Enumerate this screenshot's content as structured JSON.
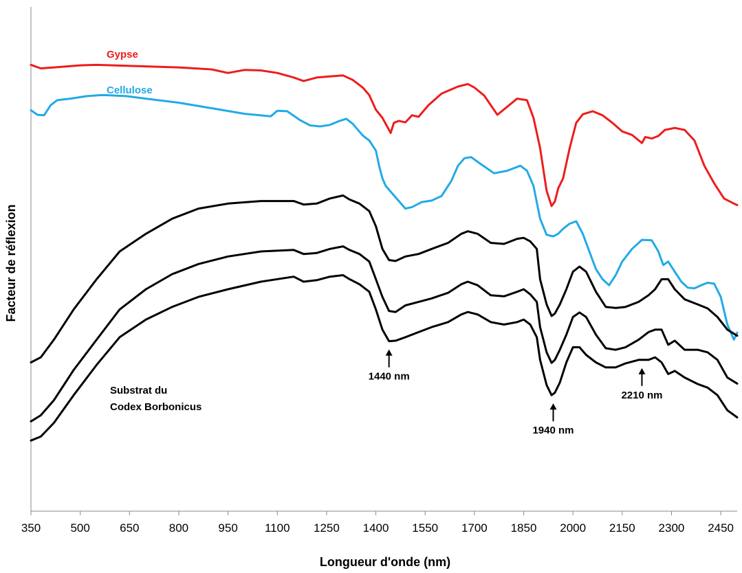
{
  "chart_data": {
    "type": "line",
    "xlabel": "Longueur d'onde (nm)",
    "ylabel": "Facteur de réflexion",
    "xlim": [
      350,
      2500
    ],
    "x_ticks": [
      350,
      500,
      650,
      800,
      950,
      1100,
      1250,
      1400,
      1550,
      1700,
      1850,
      2000,
      2150,
      2300,
      2450
    ],
    "y_ticks_shown": false,
    "grid": false,
    "legend": "none",
    "series": [
      {
        "name": "Gypse",
        "color": "#ee1c1c",
        "x": [
          350,
          380,
          420,
          500,
          550,
          650,
          700,
          800,
          900,
          950,
          1000,
          1050,
          1100,
          1150,
          1180,
          1220,
          1260,
          1300,
          1330,
          1360,
          1380,
          1400,
          1420,
          1435,
          1445,
          1455,
          1470,
          1490,
          1510,
          1530,
          1560,
          1600,
          1650,
          1680,
          1700,
          1730,
          1750,
          1770,
          1800,
          1830,
          1860,
          1880,
          1900,
          1920,
          1935,
          1945,
          1955,
          1970,
          1990,
          2010,
          2030,
          2060,
          2090,
          2120,
          2150,
          2180,
          2210,
          2220,
          2240,
          2260,
          2280,
          2310,
          2340,
          2370,
          2400,
          2430,
          2460,
          2490,
          2500
        ],
        "values": [
          88.5,
          87.8,
          88.0,
          88.4,
          88.5,
          88.3,
          88.2,
          88.0,
          87.6,
          86.9,
          87.5,
          87.4,
          86.9,
          86.0,
          85.3,
          86.0,
          86.2,
          86.4,
          85.5,
          84.0,
          82.5,
          79.6,
          78.0,
          76.2,
          75.0,
          77.0,
          77.4,
          77.1,
          78.5,
          78.2,
          80.5,
          82.8,
          84.2,
          84.7,
          84.0,
          82.4,
          80.5,
          78.6,
          80.2,
          81.8,
          81.5,
          78.0,
          72.0,
          63.5,
          60.5,
          61.4,
          64.0,
          66.0,
          72.0,
          77.0,
          78.7,
          79.3,
          78.5,
          77.0,
          75.3,
          74.6,
          73.0,
          74.2,
          73.9,
          74.4,
          75.6,
          76.0,
          75.6,
          73.5,
          68.5,
          65.0,
          62.0,
          61.0,
          60.7
        ]
      },
      {
        "name": "Cellulose",
        "color": "#22aae6",
        "x": [
          350,
          370,
          390,
          410,
          430,
          470,
          520,
          560,
          580,
          640,
          700,
          800,
          900,
          1000,
          1080,
          1100,
          1130,
          1170,
          1200,
          1230,
          1260,
          1290,
          1310,
          1330,
          1360,
          1380,
          1400,
          1410,
          1420,
          1430,
          1450,
          1470,
          1490,
          1510,
          1540,
          1570,
          1600,
          1630,
          1650,
          1670,
          1690,
          1720,
          1760,
          1800,
          1840,
          1860,
          1880,
          1900,
          1920,
          1940,
          1955,
          1970,
          1990,
          2010,
          2030,
          2050,
          2070,
          2090,
          2110,
          2130,
          2150,
          2180,
          2210,
          2240,
          2260,
          2275,
          2290,
          2310,
          2330,
          2350,
          2370,
          2390,
          2410,
          2430,
          2450,
          2470,
          2490,
          2500
        ],
        "values": [
          79.5,
          78.6,
          78.5,
          80.5,
          81.5,
          81.8,
          82.3,
          82.5,
          82.5,
          82.3,
          81.8,
          81.0,
          79.9,
          78.8,
          78.3,
          79.4,
          79.3,
          77.5,
          76.5,
          76.3,
          76.6,
          77.4,
          77.8,
          76.8,
          74.5,
          73.5,
          71.5,
          68.5,
          66.0,
          64.5,
          63.0,
          61.5,
          60.0,
          60.3,
          61.3,
          61.6,
          62.5,
          65.5,
          68.5,
          70.0,
          70.2,
          68.8,
          67.0,
          67.5,
          68.5,
          67.5,
          64.5,
          58.0,
          54.8,
          54.5,
          55.0,
          56.0,
          57.0,
          57.5,
          55.0,
          51.5,
          48.0,
          46.0,
          44.8,
          46.8,
          49.5,
          52.0,
          53.8,
          53.7,
          51.5,
          48.8,
          49.5,
          47.5,
          45.5,
          44.3,
          44.2,
          44.8,
          45.3,
          45.1,
          42.5,
          37.0,
          34.0,
          35.4
        ]
      },
      {
        "name": "Substrat du Codex Borbonicus (1)",
        "color": "#000000",
        "x": [
          350,
          380,
          420,
          480,
          550,
          620,
          700,
          780,
          860,
          950,
          1050,
          1150,
          1180,
          1220,
          1260,
          1300,
          1320,
          1350,
          1380,
          1400,
          1420,
          1440,
          1460,
          1490,
          1530,
          1570,
          1620,
          1660,
          1680,
          1710,
          1750,
          1790,
          1830,
          1850,
          1870,
          1890,
          1900,
          1920,
          1935,
          1945,
          1960,
          1980,
          2000,
          2020,
          2040,
          2070,
          2100,
          2130,
          2160,
          2200,
          2230,
          2250,
          2270,
          2290,
          2310,
          2340,
          2380,
          2410,
          2440,
          2470,
          2500
        ],
        "values": [
          29.5,
          30.5,
          34.0,
          40.0,
          46.0,
          51.5,
          55.0,
          58.0,
          60.0,
          61.0,
          61.5,
          61.5,
          60.8,
          61.0,
          62.0,
          62.6,
          61.8,
          61.0,
          59.5,
          56.5,
          52.0,
          49.8,
          49.6,
          50.5,
          51.0,
          52.0,
          53.2,
          55.0,
          55.5,
          55.0,
          53.2,
          53.0,
          54.0,
          54.2,
          53.5,
          52.0,
          46.0,
          41.0,
          38.7,
          39.2,
          41.0,
          44.0,
          47.5,
          48.5,
          47.5,
          43.5,
          40.5,
          40.3,
          40.5,
          41.5,
          42.8,
          44.0,
          46.0,
          46.0,
          44.0,
          42.0,
          41.0,
          40.2,
          38.5,
          36.0,
          34.8
        ]
      },
      {
        "name": "Substrat du Codex Borbonicus (2)",
        "color": "#000000",
        "x": [
          350,
          380,
          420,
          480,
          550,
          620,
          700,
          780,
          860,
          950,
          1050,
          1150,
          1180,
          1220,
          1260,
          1300,
          1320,
          1350,
          1380,
          1400,
          1420,
          1440,
          1460,
          1490,
          1530,
          1570,
          1620,
          1660,
          1680,
          1710,
          1750,
          1790,
          1830,
          1850,
          1870,
          1890,
          1900,
          1920,
          1935,
          1945,
          1960,
          1980,
          2000,
          2020,
          2040,
          2070,
          2100,
          2130,
          2160,
          2200,
          2230,
          2250,
          2270,
          2290,
          2310,
          2340,
          2380,
          2410,
          2440,
          2470,
          2500
        ],
        "values": [
          17.8,
          19.0,
          22.0,
          28.0,
          34.0,
          40.0,
          44.0,
          47.0,
          49.0,
          50.5,
          51.5,
          51.8,
          51.0,
          51.2,
          52.0,
          52.5,
          51.8,
          51.0,
          49.5,
          46.0,
          42.5,
          39.7,
          39.5,
          40.8,
          41.5,
          42.2,
          43.3,
          45.0,
          45.5,
          44.8,
          42.8,
          42.6,
          43.5,
          44.0,
          43.0,
          41.5,
          36.5,
          31.5,
          29.4,
          30.0,
          32.0,
          35.0,
          38.5,
          39.4,
          38.5,
          35.0,
          32.3,
          32.0,
          32.5,
          34.0,
          35.5,
          36.0,
          36.0,
          33.0,
          33.8,
          32.0,
          32.0,
          31.5,
          30.0,
          26.5,
          25.3
        ]
      },
      {
        "name": "Substrat du Codex Borbonicus (3)",
        "color": "#000000",
        "x": [
          350,
          380,
          420,
          480,
          550,
          620,
          700,
          780,
          860,
          950,
          1050,
          1150,
          1180,
          1220,
          1260,
          1300,
          1320,
          1350,
          1380,
          1400,
          1420,
          1440,
          1460,
          1490,
          1530,
          1570,
          1620,
          1660,
          1680,
          1710,
          1750,
          1790,
          1830,
          1850,
          1870,
          1890,
          1900,
          1920,
          1935,
          1945,
          1960,
          1980,
          2000,
          2020,
          2040,
          2070,
          2100,
          2130,
          2160,
          2200,
          2230,
          2250,
          2270,
          2290,
          2310,
          2340,
          2380,
          2410,
          2440,
          2470,
          2500
        ],
        "values": [
          14.0,
          14.8,
          17.5,
          23.0,
          29.0,
          34.5,
          38.0,
          40.5,
          42.5,
          44.0,
          45.5,
          46.5,
          45.5,
          45.8,
          46.5,
          46.8,
          46.0,
          45.0,
          43.5,
          40.0,
          36.0,
          33.7,
          33.8,
          34.5,
          35.5,
          36.5,
          37.5,
          39.0,
          39.5,
          39.0,
          37.5,
          37.0,
          37.5,
          38.0,
          37.0,
          34.5,
          30.0,
          25.0,
          23.0,
          23.5,
          25.5,
          29.5,
          32.5,
          32.5,
          31.0,
          29.5,
          28.5,
          28.5,
          29.3,
          30.0,
          30.0,
          30.5,
          29.5,
          27.2,
          27.8,
          26.5,
          25.2,
          24.5,
          23.0,
          20.0,
          18.6
        ]
      }
    ],
    "series_labels": {
      "gypse": "Gypse",
      "cellulose": "Cellulose",
      "substrat_line1": "Substrat du",
      "substrat_line2": "Codex Borbonicus"
    },
    "annotations": [
      {
        "text": "1440 nm",
        "x": 1440,
        "y": 33.7,
        "series": "Substrat du Codex Borbonicus (1)"
      },
      {
        "text": "1940 nm",
        "x": 1940,
        "y": 23.0,
        "series": "Substrat du Codex Borbonicus (3)"
      },
      {
        "text": "2210 nm",
        "x": 2210,
        "y": 30.0,
        "series": "Substrat du Codex Borbonicus (3)"
      }
    ]
  }
}
